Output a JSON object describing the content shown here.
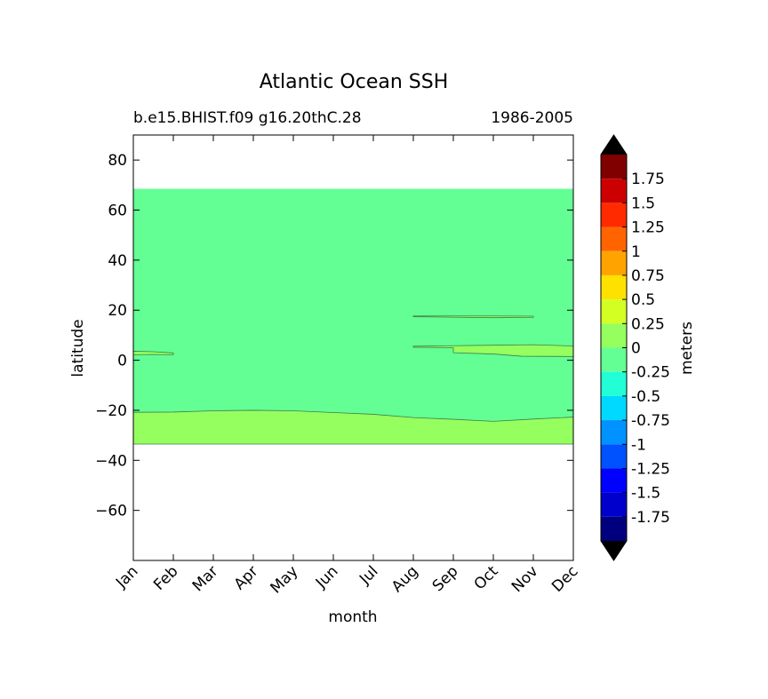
{
  "chart_data": {
    "type": "heatmap",
    "title": "Atlantic Ocean SSH",
    "subtitle_left": "b.e15.BHIST.f09 g16.20thC.28",
    "subtitle_right": "1986-2005",
    "xlabel": "month",
    "ylabel": "latitude",
    "colorbar_label": "meters",
    "x_categories": [
      "Jan",
      "Feb",
      "Mar",
      "Apr",
      "May",
      "Jun",
      "Jul",
      "Aug",
      "Sep",
      "Oct",
      "Nov",
      "Dec"
    ],
    "ylim": [
      -80,
      90
    ],
    "y_ticks": [
      80,
      60,
      40,
      20,
      0,
      -20,
      -40,
      -60
    ],
    "y_tick_labels": [
      "80",
      "60",
      "40",
      "20",
      "0",
      "−20",
      "−40",
      "−60"
    ],
    "data_extent": {
      "lat_min": -33.5,
      "lat_max": 68.5
    },
    "regions": [
      {
        "name": "-0.25 to 0",
        "color": "#63ff94",
        "note": "dominant field"
      },
      {
        "name": "0 to 0.25 south",
        "color": "#96ff60",
        "month_idx": [
          0,
          1,
          2,
          3,
          4,
          5,
          6,
          7,
          8,
          9,
          10,
          11
        ],
        "upper_lat": [
          -20.8,
          -20.7,
          -20.2,
          -20.0,
          -20.2,
          -20.9,
          -21.6,
          -22.9,
          -23.6,
          -24.4,
          -23.5,
          -22.7
        ],
        "lower_lat": -33.5
      },
      {
        "name": "0 to 0.25 equatorial east",
        "color": "#96ff60",
        "upper": [
          [
            7,
            5.6
          ],
          [
            9,
            6.0
          ],
          [
            10,
            6.2
          ],
          [
            11,
            5.7
          ]
        ],
        "lower": [
          [
            7,
            5.2
          ],
          [
            8,
            5.0
          ],
          [
            8,
            3.0
          ],
          [
            9,
            2.5
          ],
          [
            9.7,
            1.6
          ],
          [
            11,
            1.5
          ]
        ]
      },
      {
        "name": "0 to 0.25 equatorial west",
        "color": "#96ff60",
        "upper": [
          [
            0,
            3.6
          ],
          [
            0.5,
            3.4
          ],
          [
            1,
            2.9
          ]
        ],
        "lower": [
          [
            0,
            2.2
          ],
          [
            0.5,
            2.3
          ],
          [
            1,
            2.2
          ]
        ]
      },
      {
        "name": "0 to 0.25 thin band 17N",
        "color": "#96ff60",
        "upper": [
          [
            7,
            17.7
          ],
          [
            9,
            17.7
          ],
          [
            10,
            17.6
          ]
        ],
        "lower": [
          [
            7,
            17.4
          ],
          [
            9,
            17.0
          ],
          [
            10,
            17.1
          ]
        ]
      }
    ],
    "colorbar": {
      "labels": [
        "1.75",
        "1.5",
        "1.25",
        "1",
        "0.75",
        "0.5",
        "0.25",
        "0",
        "-0.25",
        "-0.5",
        "-0.75",
        "-1",
        "-1.25",
        "-1.5",
        "-1.75"
      ],
      "colors": [
        "#800000",
        "#cc0000",
        "#ff2a00",
        "#ff6400",
        "#ffa300",
        "#ffe100",
        "#d4ff23",
        "#96ff60",
        "#63ff94",
        "#22ffd6",
        "#00d9ff",
        "#0092ff",
        "#0052ff",
        "#0000ff",
        "#0000cc",
        "#00007f"
      ],
      "extend_colors": {
        "over": "#000000",
        "under": "#000000"
      }
    }
  }
}
